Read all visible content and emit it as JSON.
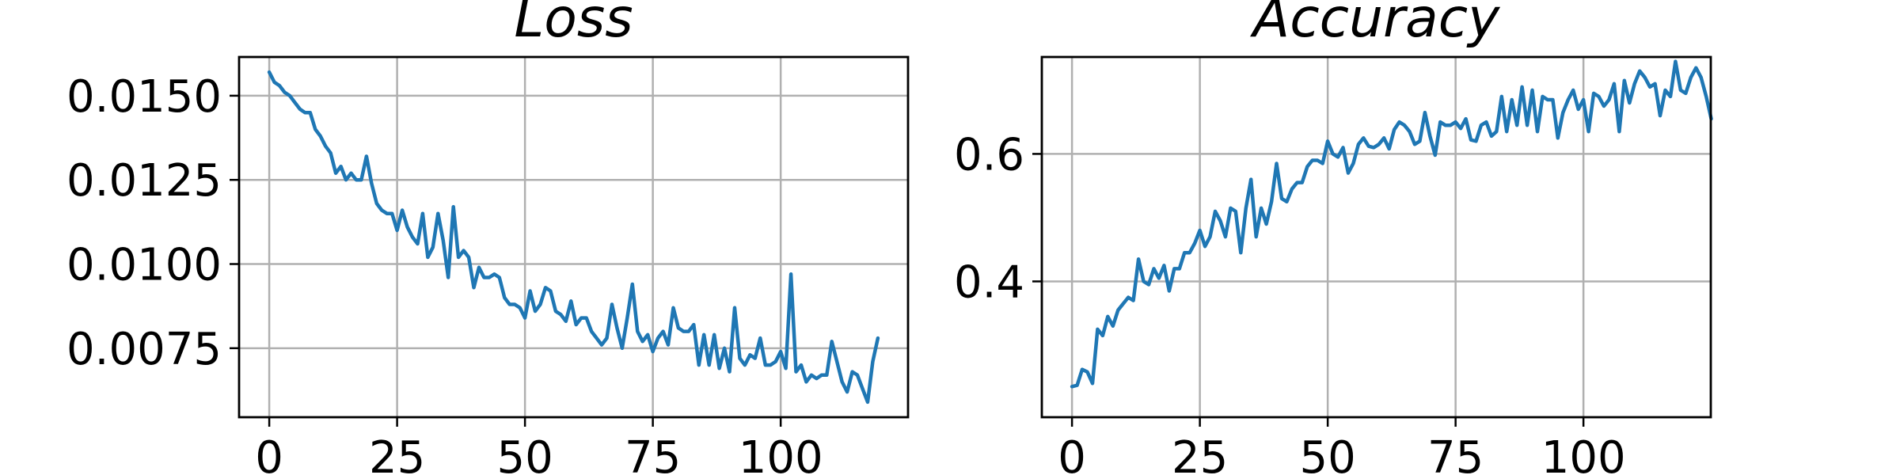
{
  "colors": {
    "series": "#1f77b4",
    "grid": "#b0b0b0",
    "axes": "#000000",
    "background": "#ffffff"
  },
  "chart_data": [
    {
      "type": "line",
      "title": "Loss",
      "xlabel": "",
      "ylabel": "",
      "grid": true,
      "xlim": [
        -5.9,
        124.9
      ],
      "ylim": [
        0.00545,
        0.01615
      ],
      "xticks": [
        0,
        25,
        50,
        75,
        100
      ],
      "xtick_labels": [
        "0",
        "25",
        "50",
        "75",
        "100"
      ],
      "yticks": [
        0.0075,
        0.01,
        0.0125,
        0.015
      ],
      "ytick_labels": [
        "0.0075",
        "0.0100",
        "0.0125",
        "0.0150"
      ],
      "series": [
        {
          "values": [
            0.0157,
            0.0154,
            0.0153,
            0.0151,
            0.015,
            0.0148,
            0.0146,
            0.0145,
            0.0145,
            0.014,
            0.0138,
            0.0135,
            0.0133,
            0.0127,
            0.0129,
            0.0125,
            0.0127,
            0.0125,
            0.0125,
            0.0132,
            0.0124,
            0.0118,
            0.0116,
            0.0115,
            0.0115,
            0.011,
            0.0116,
            0.0111,
            0.0108,
            0.0106,
            0.0115,
            0.0102,
            0.0105,
            0.0115,
            0.0107,
            0.0096,
            0.0117,
            0.0102,
            0.0104,
            0.0102,
            0.0093,
            0.0099,
            0.0096,
            0.0096,
            0.0097,
            0.0096,
            0.009,
            0.0088,
            0.0088,
            0.0087,
            0.0084,
            0.0092,
            0.0086,
            0.0088,
            0.0093,
            0.0092,
            0.0086,
            0.0085,
            0.0083,
            0.0089,
            0.0082,
            0.0084,
            0.0084,
            0.008,
            0.0078,
            0.0076,
            0.0078,
            0.0088,
            0.0081,
            0.0075,
            0.0084,
            0.0094,
            0.008,
            0.0077,
            0.0079,
            0.0074,
            0.0078,
            0.008,
            0.0076,
            0.0087,
            0.0081,
            0.008,
            0.008,
            0.0082,
            0.007,
            0.0079,
            0.007,
            0.0079,
            0.0069,
            0.0075,
            0.0068,
            0.0087,
            0.0072,
            0.007,
            0.0073,
            0.0072,
            0.0078,
            0.007,
            0.007,
            0.0071,
            0.0074,
            0.0069,
            0.0097,
            0.0068,
            0.007,
            0.0065,
            0.0067,
            0.0066,
            0.0067,
            0.0067,
            0.0077,
            0.0071,
            0.0065,
            0.0062,
            0.0068,
            0.0067,
            0.0063,
            0.0059,
            0.0071,
            0.0078
          ]
        }
      ]
    },
    {
      "type": "line",
      "title": "Accuracy",
      "xlabel": "",
      "ylabel": "",
      "grid": true,
      "xlim": [
        -5.9,
        124.9
      ],
      "ylim": [
        0.187,
        0.752
      ],
      "xticks": [
        0,
        25,
        50,
        75,
        100
      ],
      "xtick_labels": [
        "0",
        "25",
        "50",
        "75",
        "100"
      ],
      "yticks": [
        0.4,
        0.6
      ],
      "ytick_labels": [
        "0.4",
        "0.6"
      ],
      "series": [
        {
          "values": [
            0.235,
            0.237,
            0.262,
            0.258,
            0.24,
            0.325,
            0.315,
            0.345,
            0.33,
            0.355,
            0.365,
            0.375,
            0.37,
            0.435,
            0.4,
            0.395,
            0.42,
            0.405,
            0.425,
            0.385,
            0.42,
            0.42,
            0.445,
            0.445,
            0.46,
            0.48,
            0.455,
            0.47,
            0.51,
            0.495,
            0.47,
            0.515,
            0.51,
            0.445,
            0.515,
            0.56,
            0.47,
            0.515,
            0.49,
            0.525,
            0.585,
            0.53,
            0.525,
            0.545,
            0.555,
            0.555,
            0.58,
            0.59,
            0.59,
            0.585,
            0.62,
            0.6,
            0.595,
            0.61,
            0.57,
            0.585,
            0.615,
            0.625,
            0.612,
            0.61,
            0.615,
            0.625,
            0.608,
            0.638,
            0.65,
            0.645,
            0.635,
            0.615,
            0.62,
            0.665,
            0.628,
            0.598,
            0.65,
            0.645,
            0.645,
            0.65,
            0.64,
            0.655,
            0.622,
            0.62,
            0.645,
            0.65,
            0.628,
            0.635,
            0.69,
            0.635,
            0.685,
            0.645,
            0.705,
            0.645,
            0.7,
            0.635,
            0.69,
            0.685,
            0.685,
            0.625,
            0.665,
            0.685,
            0.7,
            0.67,
            0.685,
            0.635,
            0.695,
            0.69,
            0.675,
            0.685,
            0.71,
            0.635,
            0.715,
            0.68,
            0.71,
            0.73,
            0.72,
            0.705,
            0.71,
            0.66,
            0.7,
            0.69,
            0.745,
            0.7,
            0.695,
            0.72,
            0.735,
            0.72,
            0.69,
            0.655
          ]
        }
      ]
    }
  ]
}
